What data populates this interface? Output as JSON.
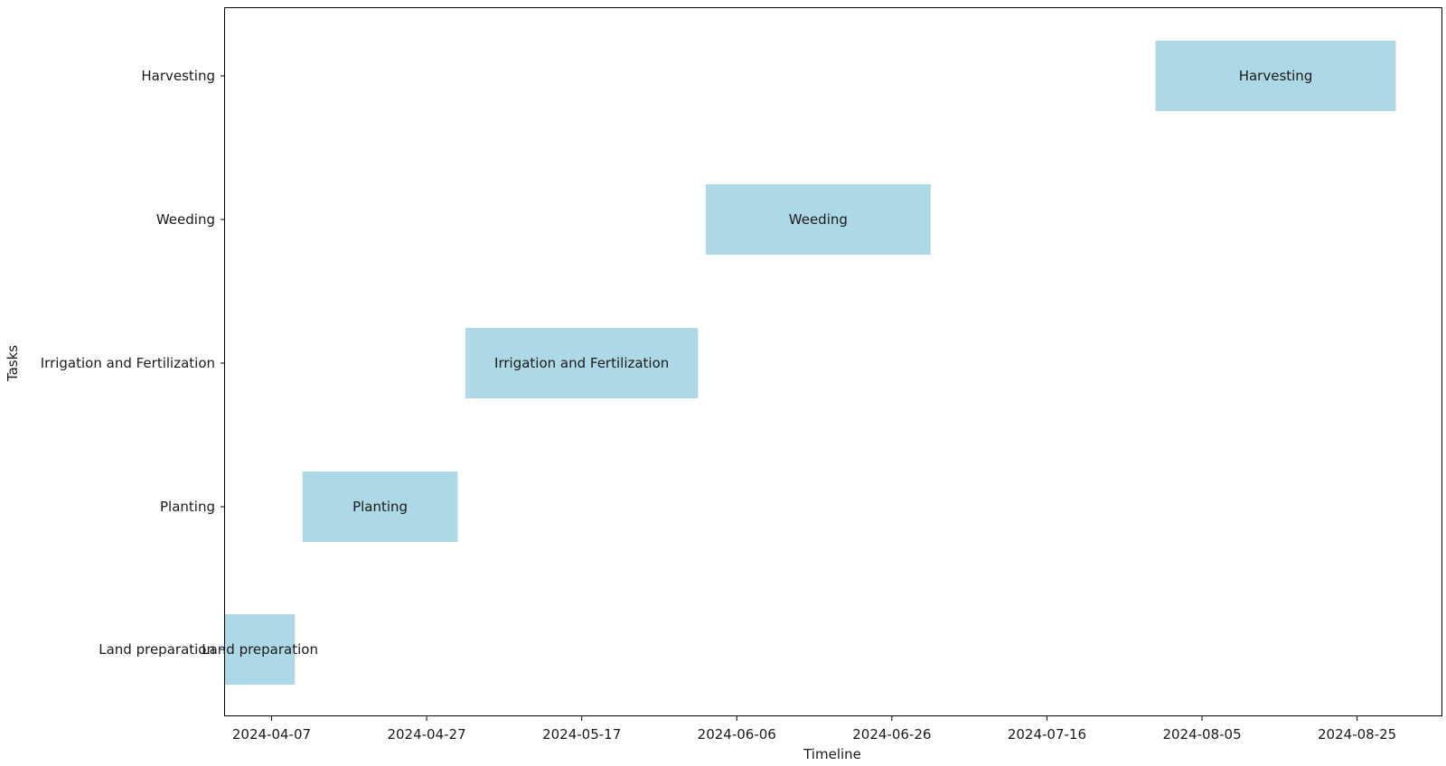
{
  "chart_data": {
    "type": "gantt",
    "title": "",
    "xlabel": "Timeline",
    "ylabel": "Tasks",
    "x_axis": "date",
    "xlim": [
      "2024-04-01",
      "2024-09-05"
    ],
    "xticks": [
      "2024-04-07",
      "2024-04-27",
      "2024-05-17",
      "2024-06-06",
      "2024-06-26",
      "2024-07-16",
      "2024-08-05",
      "2024-08-25"
    ],
    "grid": false,
    "bar_color": "#add8e6",
    "tasks": [
      {
        "name": "Land preparation",
        "start": "2024-04-01",
        "end": "2024-04-10"
      },
      {
        "name": "Planting",
        "start": "2024-04-11",
        "end": "2024-05-01"
      },
      {
        "name": "Irrigation and Fertilization",
        "start": "2024-05-02",
        "end": "2024-06-01"
      },
      {
        "name": "Weeding",
        "start": "2024-06-02",
        "end": "2024-07-01"
      },
      {
        "name": "Harvesting",
        "start": "2024-07-30",
        "end": "2024-08-30"
      }
    ]
  }
}
